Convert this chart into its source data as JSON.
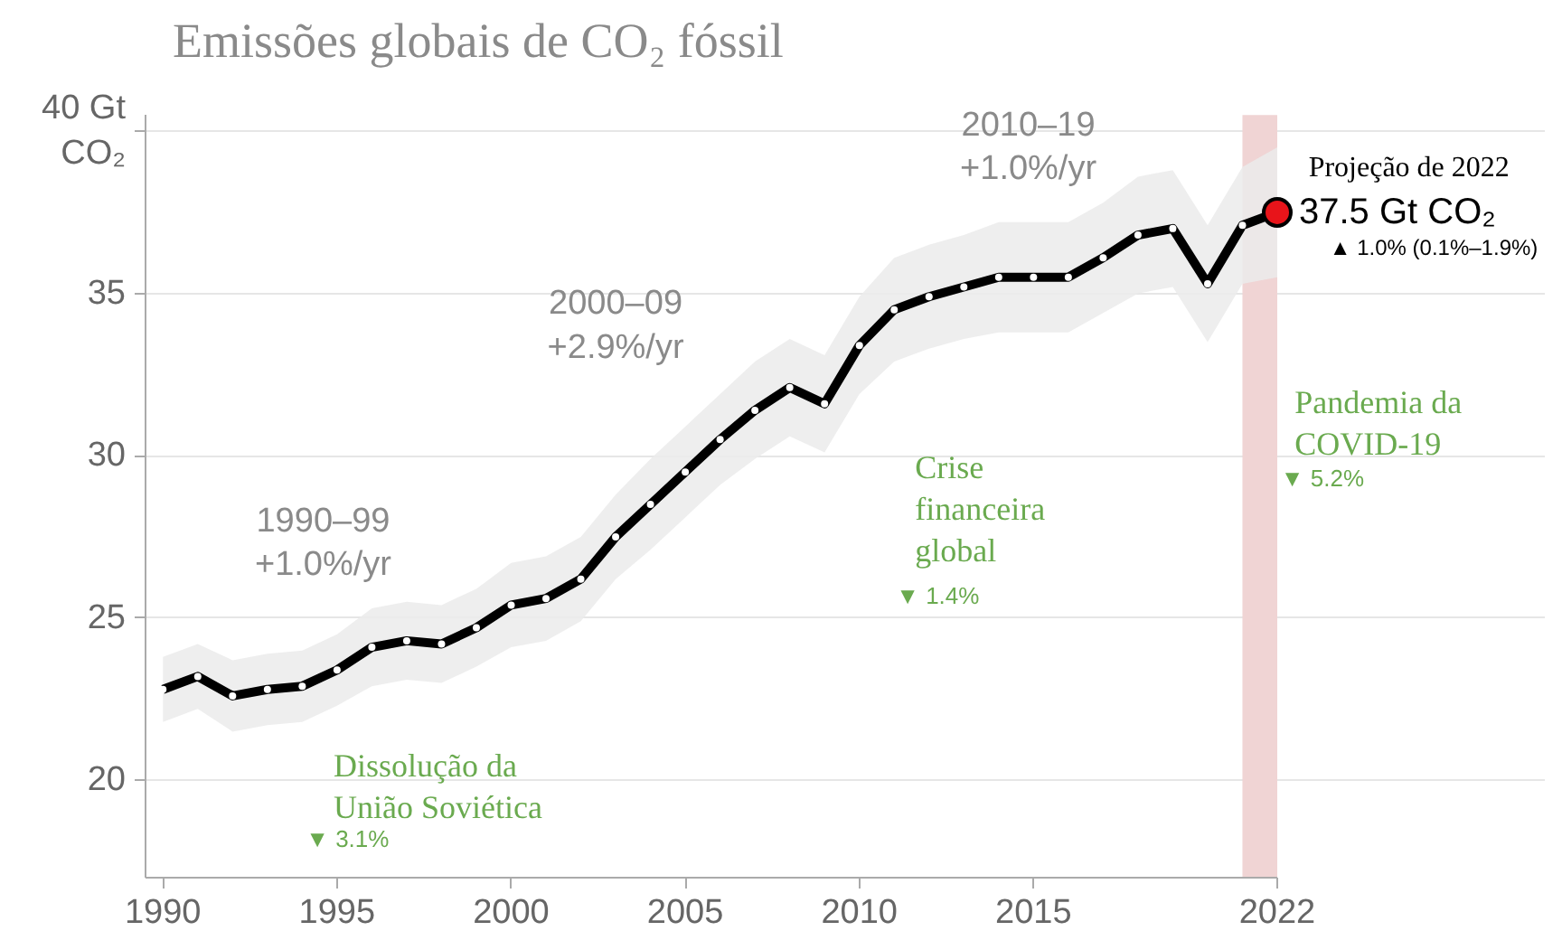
{
  "chart_data": {
    "type": "line",
    "title": "Emissões globais de CO₂ fóssil",
    "x": [
      1990,
      1991,
      1992,
      1993,
      1994,
      1995,
      1996,
      1997,
      1998,
      1999,
      2000,
      2001,
      2002,
      2003,
      2004,
      2005,
      2006,
      2007,
      2008,
      2009,
      2010,
      2011,
      2012,
      2013,
      2014,
      2015,
      2016,
      2017,
      2018,
      2019,
      2020,
      2021,
      2022
    ],
    "series": [
      {
        "color": "#000000",
        "values": [
          22.8,
          23.2,
          22.6,
          22.8,
          22.9,
          23.4,
          24.1,
          24.3,
          24.2,
          24.7,
          25.4,
          25.6,
          26.2,
          27.5,
          28.5,
          29.5,
          30.5,
          31.4,
          32.1,
          31.6,
          33.4,
          34.5,
          34.9,
          35.2,
          35.5,
          35.5,
          35.5,
          36.1,
          36.8,
          37.0,
          35.3,
          37.1,
          37.5
        ],
        "lower": [
          21.8,
          22.2,
          21.5,
          21.7,
          21.8,
          22.3,
          22.9,
          23.1,
          23.0,
          23.5,
          24.1,
          24.3,
          24.9,
          26.2,
          27.1,
          28.1,
          29.1,
          29.9,
          30.6,
          30.1,
          31.9,
          32.9,
          33.3,
          33.6,
          33.8,
          33.8,
          33.8,
          34.4,
          35.0,
          35.2,
          33.5,
          35.3,
          35.5
        ],
        "upper": [
          23.8,
          24.2,
          23.7,
          23.9,
          24.0,
          24.5,
          25.3,
          25.5,
          25.4,
          25.9,
          26.7,
          26.9,
          27.5,
          28.8,
          29.9,
          30.9,
          31.9,
          32.9,
          33.6,
          33.1,
          34.9,
          36.1,
          36.5,
          36.8,
          37.2,
          37.2,
          37.2,
          37.8,
          38.6,
          38.8,
          37.1,
          38.9,
          39.5
        ]
      },
      {
        "type": "scatter",
        "x": [
          2022
        ],
        "values": [
          37.5
        ],
        "color": "#e8141a"
      }
    ],
    "xlim": [
      1989.5,
      2022
    ],
    "ylim": [
      17,
      40.5
    ],
    "xticks": [
      1990,
      1995,
      2000,
      2005,
      2010,
      2015,
      2022
    ],
    "yticks": [
      20,
      25,
      30,
      35,
      {
        "value": 40,
        "label": "40 Gt\nCO₂"
      }
    ],
    "grid": "y",
    "marker": "circle",
    "line_style": "solid",
    "bands": [
      {
        "axis": "x",
        "from": 2021,
        "to": 2022,
        "color": "#f0d4d4"
      }
    ],
    "annotations": [
      "1990–99\n+1.0%/yr",
      "2000–09\n+2.9%/yr",
      "2010–19\n+1.0%/yr",
      "Dissolução    da\nUnião Soviética",
      "▼ 3.1%",
      "Crise\nfinanceira\nglobal",
      "▼ 1.4%",
      "Pandemia da\nCOVID-19",
      "▼ 5.2%",
      "Projeção de 2022",
      {
        "text": "37.5 Gt CO₂",
        "x": 2022,
        "y": 37.5
      },
      "▲ 1.0% (0.1%–1.9%)"
    ]
  }
}
